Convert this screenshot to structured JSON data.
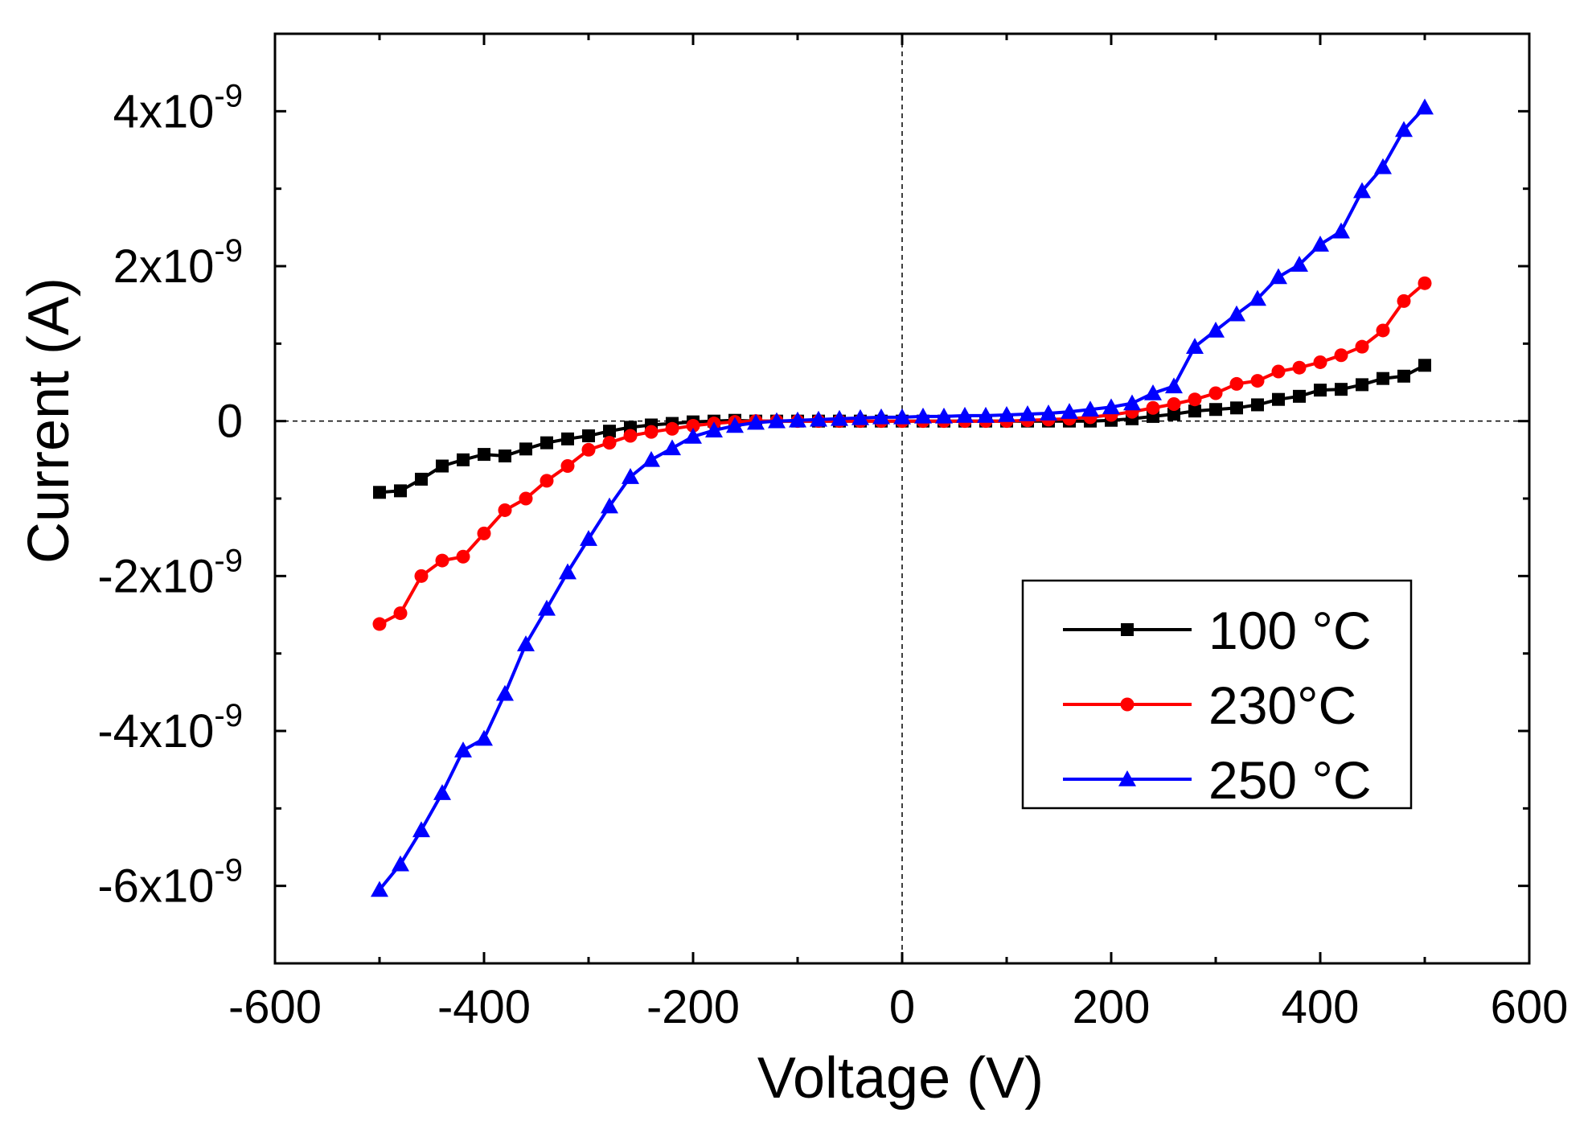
{
  "chart_data": {
    "type": "line",
    "title": "",
    "xlabel": "Voltage (V)",
    "ylabel": "Current (A)",
    "xlim": [
      -600,
      600
    ],
    "ylim": [
      -7e-09,
      5e-09
    ],
    "x_ticks": [
      -600,
      -400,
      -200,
      0,
      200,
      400,
      600
    ],
    "x_tick_labels": [
      "-600",
      "-400",
      "-200",
      "0",
      "200",
      "400",
      "600"
    ],
    "y_ticks": [
      {
        "value": 4e-09,
        "mantissa": "4x10",
        "exponent": "-9"
      },
      {
        "value": 2e-09,
        "mantissa": "2x10",
        "exponent": "-9"
      },
      {
        "value": 0,
        "mantissa": "0",
        "exponent": ""
      },
      {
        "value": -2e-09,
        "mantissa": "-2x10",
        "exponent": "-9"
      },
      {
        "value": -4e-09,
        "mantissa": "-4x10",
        "exponent": "-9"
      },
      {
        "value": -6e-09,
        "mantissa": "-6x10",
        "exponent": "-9"
      }
    ],
    "grid": false,
    "reference_lines": {
      "x": 0,
      "y": 0,
      "style": "dashed"
    },
    "legend_position": "bottom-right",
    "x": [
      -500,
      -480,
      -460,
      -440,
      -420,
      -400,
      -380,
      -360,
      -340,
      -320,
      -300,
      -280,
      -260,
      -240,
      -220,
      -200,
      -180,
      -160,
      -140,
      -120,
      -100,
      -80,
      -60,
      -40,
      -20,
      0,
      20,
      40,
      60,
      80,
      100,
      120,
      140,
      160,
      180,
      200,
      220,
      240,
      260,
      280,
      300,
      320,
      340,
      360,
      380,
      400,
      420,
      440,
      460,
      480,
      500
    ],
    "series": [
      {
        "name": "100 °C",
        "color": "#000000",
        "marker": "square",
        "values": [
          -9.2e-10,
          -9e-10,
          -7.5e-10,
          -5.8e-10,
          -5e-10,
          -4.3e-10,
          -4.5e-10,
          -3.6e-10,
          -2.8e-10,
          -2.3e-10,
          -1.9e-10,
          -1.3e-10,
          -8e-11,
          -5e-11,
          -3e-11,
          -1e-11,
          0,
          1e-11,
          0,
          0,
          0,
          0,
          0,
          0,
          0,
          0,
          0,
          0,
          0,
          0,
          0,
          0,
          0,
          0,
          0,
          1e-11,
          3e-11,
          6e-11,
          9e-11,
          1.3e-10,
          1.5e-10,
          1.7e-10,
          2.1e-10,
          2.8e-10,
          3.2e-10,
          4e-10,
          4.1e-10,
          4.7e-10,
          5.5e-10,
          5.8e-10,
          7.2e-10
        ]
      },
      {
        "name": "230°C",
        "color": "#ff0000",
        "marker": "circle",
        "values": [
          -2.62e-09,
          -2.48e-09,
          -2e-09,
          -1.8e-09,
          -1.75e-09,
          -1.45e-09,
          -1.15e-09,
          -1e-09,
          -7.7e-10,
          -5.8e-10,
          -3.7e-10,
          -2.8e-10,
          -1.9e-10,
          -1.4e-10,
          -1e-10,
          -6e-11,
          -3e-11,
          -1e-11,
          0,
          0,
          0,
          0,
          0,
          0,
          0,
          0,
          0,
          0,
          0,
          0,
          0,
          1e-11,
          2e-11,
          3e-11,
          5e-11,
          8e-11,
          1.2e-10,
          1.7e-10,
          2.2e-10,
          2.8e-10,
          3.6e-10,
          4.8e-10,
          5.2e-10,
          6.4e-10,
          6.9e-10,
          7.6e-10,
          8.5e-10,
          9.6e-10,
          1.17e-09,
          1.55e-09,
          1.78e-09
        ]
      },
      {
        "name": "250 °C",
        "color": "#0000ff",
        "marker": "triangle",
        "values": [
          -6.05e-09,
          -5.72e-09,
          -5.28e-09,
          -4.8e-09,
          -4.25e-09,
          -4.1e-09,
          -3.52e-09,
          -2.88e-09,
          -2.42e-09,
          -1.95e-09,
          -1.52e-09,
          -1.1e-09,
          -7.2e-10,
          -5e-10,
          -3.5e-10,
          -2e-10,
          -1.2e-10,
          -6e-11,
          -2e-11,
          0,
          1e-11,
          2e-11,
          3e-11,
          4e-11,
          5e-11,
          5e-11,
          6e-11,
          6e-11,
          7e-11,
          7e-11,
          8e-11,
          9e-11,
          1e-10,
          1.2e-10,
          1.5e-10,
          1.8e-10,
          2.3e-10,
          3.6e-10,
          4.5e-10,
          9.6e-10,
          1.17e-09,
          1.38e-09,
          1.58e-09,
          1.86e-09,
          2.02e-09,
          2.28e-09,
          2.45e-09,
          2.97e-09,
          3.28e-09,
          3.76e-09,
          4.05e-09
        ]
      }
    ]
  }
}
